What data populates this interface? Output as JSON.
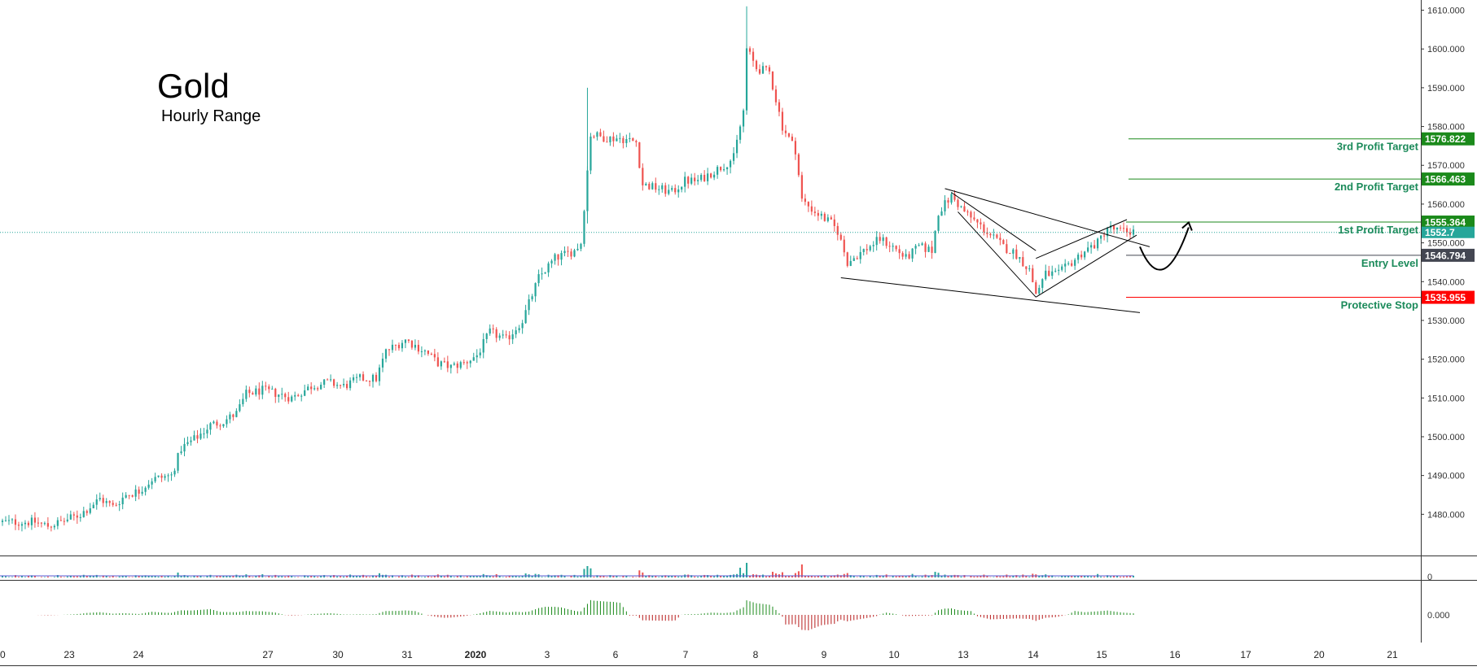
{
  "chart_data": {
    "type": "candlestick",
    "title": "Gold",
    "subtitle": "Hourly Range",
    "colors": {
      "up": "#26a69a",
      "down": "#ef5350",
      "profit": "#1b8a1b",
      "entry": "#434651",
      "stop": "#ff0000",
      "trend": "#000000",
      "current": "#26a69a"
    },
    "y_axis": {
      "range": [
        1470,
        1612
      ],
      "ticks": [
        "1480.000",
        "1490.000",
        "1500.000",
        "1510.000",
        "1520.000",
        "1530.000",
        "1540.000",
        "1550.000",
        "1560.000",
        "1570.000",
        "1580.000",
        "1590.000",
        "1600.000",
        "1610.000"
      ]
    },
    "x_axis": {
      "ticks": [
        {
          "label": "0",
          "bold": false
        },
        {
          "label": "23",
          "bold": false
        },
        {
          "label": "24",
          "bold": false
        },
        {
          "label": "27",
          "bold": false
        },
        {
          "label": "30",
          "bold": false
        },
        {
          "label": "31",
          "bold": false
        },
        {
          "label": "2020",
          "bold": true
        },
        {
          "label": "3",
          "bold": false
        },
        {
          "label": "6",
          "bold": false
        },
        {
          "label": "7",
          "bold": false
        },
        {
          "label": "8",
          "bold": false
        },
        {
          "label": "9",
          "bold": false
        },
        {
          "label": "10",
          "bold": false
        },
        {
          "label": "13",
          "bold": false
        },
        {
          "label": "14",
          "bold": false
        },
        {
          "label": "15",
          "bold": false
        },
        {
          "label": "16",
          "bold": false
        },
        {
          "label": "17",
          "bold": false
        },
        {
          "label": "20",
          "bold": false
        },
        {
          "label": "21",
          "bold": false
        }
      ]
    },
    "price_path": [
      [
        0,
        1478
      ],
      [
        10,
        1478
      ],
      [
        14,
        1477
      ],
      [
        18,
        1478
      ],
      [
        24,
        1480
      ],
      [
        30,
        1484
      ],
      [
        34,
        1482
      ],
      [
        38,
        1485
      ],
      [
        42,
        1486
      ],
      [
        46,
        1489
      ],
      [
        52,
        1490
      ],
      [
        55,
        1497
      ],
      [
        60,
        1500
      ],
      [
        64,
        1503
      ],
      [
        68,
        1504
      ],
      [
        72,
        1506
      ],
      [
        75,
        1511
      ],
      [
        80,
        1512
      ],
      [
        85,
        1511
      ],
      [
        89,
        1510
      ],
      [
        95,
        1513
      ],
      [
        100,
        1514
      ],
      [
        105,
        1513
      ],
      [
        110,
        1515
      ],
      [
        115,
        1515
      ],
      [
        118,
        1522
      ],
      [
        124,
        1525
      ],
      [
        130,
        1522
      ],
      [
        134,
        1519
      ],
      [
        138,
        1518
      ],
      [
        142,
        1519
      ],
      [
        146,
        1521
      ],
      [
        150,
        1527
      ],
      [
        155,
        1525
      ],
      [
        160,
        1530
      ],
      [
        165,
        1541
      ],
      [
        170,
        1546
      ],
      [
        176,
        1548
      ],
      [
        178,
        1550
      ],
      [
        181,
        1578
      ],
      [
        186,
        1577
      ],
      [
        190,
        1577
      ],
      [
        195,
        1576
      ],
      [
        197,
        1565
      ],
      [
        202,
        1564
      ],
      [
        206,
        1563
      ],
      [
        210,
        1566
      ],
      [
        214,
        1566
      ],
      [
        218,
        1568
      ],
      [
        222,
        1570
      ],
      [
        225,
        1572
      ],
      [
        228,
        1584
      ],
      [
        229,
        1600
      ],
      [
        232,
        1595
      ],
      [
        236,
        1594
      ],
      [
        240,
        1580
      ],
      [
        244,
        1574
      ],
      [
        246,
        1561
      ],
      [
        250,
        1558
      ],
      [
        255,
        1555
      ],
      [
        257,
        1553
      ],
      [
        260,
        1545
      ],
      [
        265,
        1548
      ],
      [
        270,
        1551
      ],
      [
        274,
        1549
      ],
      [
        278,
        1546
      ],
      [
        282,
        1549
      ],
      [
        286,
        1548
      ],
      [
        288,
        1558
      ],
      [
        292,
        1562
      ],
      [
        296,
        1558
      ],
      [
        300,
        1555
      ],
      [
        304,
        1552
      ],
      [
        308,
        1549
      ],
      [
        312,
        1547
      ],
      [
        316,
        1543
      ],
      [
        318,
        1537
      ],
      [
        321,
        1542
      ],
      [
        325,
        1542
      ],
      [
        329,
        1545
      ],
      [
        333,
        1548
      ],
      [
        337,
        1550
      ],
      [
        340,
        1554
      ],
      [
        344,
        1553
      ],
      [
        348,
        1553
      ]
    ],
    "targets": [
      {
        "name": "3rd Profit Target",
        "price": 1576.822,
        "price_label": "1576.822",
        "kind": "profit"
      },
      {
        "name": "2nd Profit Target",
        "price": 1566.463,
        "price_label": "1566.463",
        "kind": "profit"
      },
      {
        "name": "1st Profit Target",
        "price": 1555.364,
        "price_label": "1555.364",
        "kind": "profit"
      },
      {
        "name": "Entry Level",
        "price": 1546.794,
        "price_label": "1546.794",
        "kind": "entry"
      },
      {
        "name": "Protective Stop",
        "price": 1535.955,
        "price_label": "1535.955",
        "kind": "stop"
      }
    ],
    "current_price": {
      "price": 1552.7,
      "label_partial": "1552.7"
    },
    "volume_pane": {
      "zero_label": "0"
    },
    "oscillator_pane": {
      "zero_label": "0.000"
    },
    "trendlines": [
      {
        "from": [
          258,
          1541
        ],
        "to": [
          350,
          1532
        ]
      },
      {
        "from": [
          290,
          1564
        ],
        "to": [
          353,
          1549
        ]
      },
      {
        "from": [
          292,
          1563
        ],
        "to": [
          318,
          1548
        ]
      },
      {
        "from": [
          294,
          1558
        ],
        "to": [
          318,
          1536
        ]
      },
      {
        "from": [
          318,
          1536
        ],
        "to": [
          349,
          1552
        ]
      },
      {
        "from": [
          318,
          1546
        ],
        "to": [
          346,
          1556
        ]
      }
    ]
  }
}
